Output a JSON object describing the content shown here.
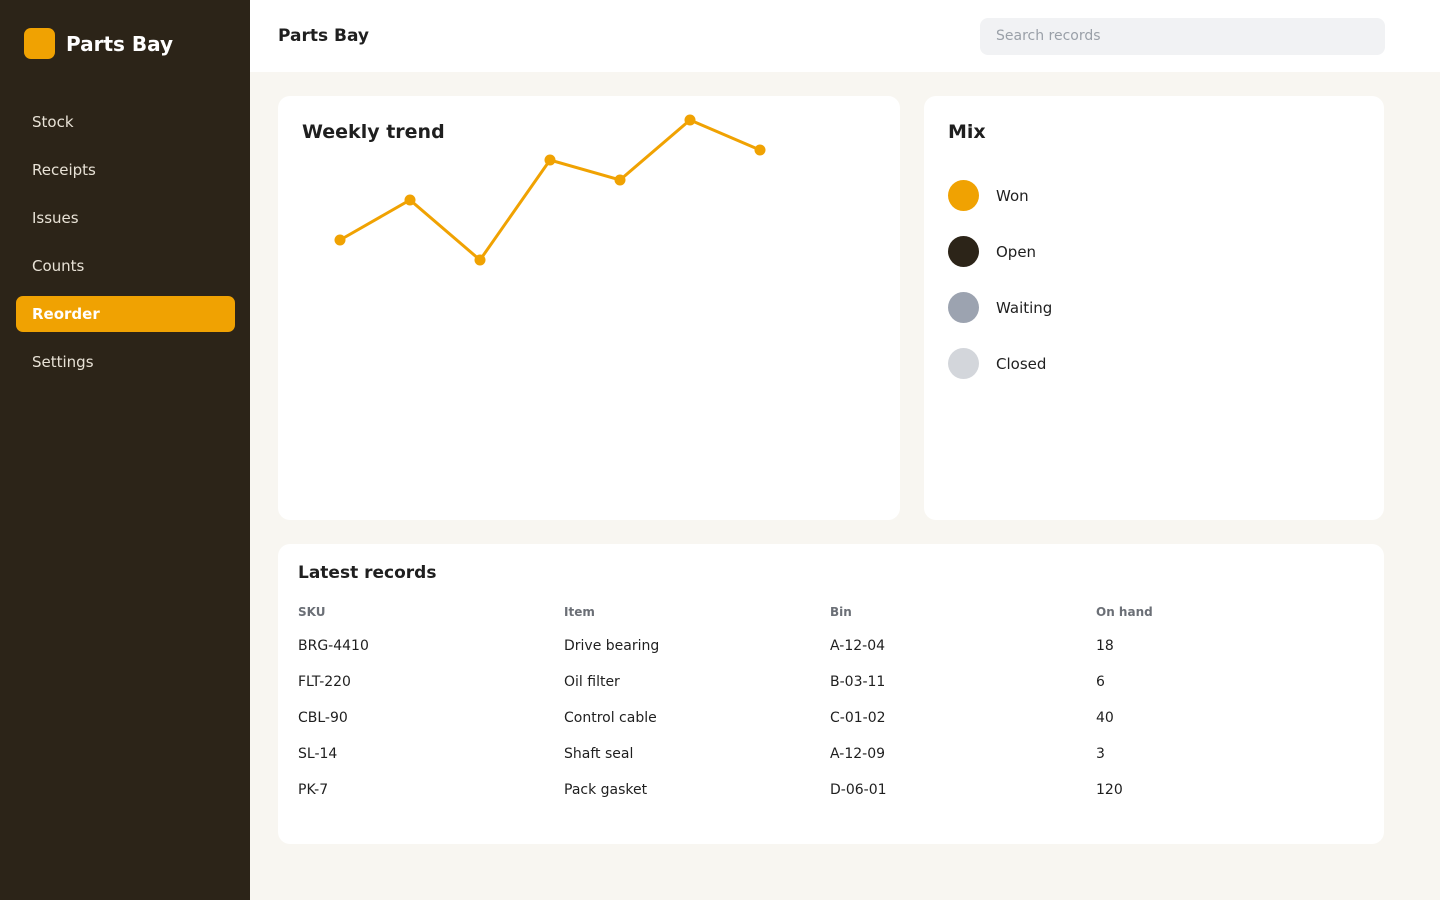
{
  "brand": "Parts Bay",
  "nav": [
    "Stock",
    "Receipts",
    "Issues",
    "Counts",
    "Reorder",
    "Settings"
  ],
  "active_nav": 4,
  "header": {
    "title": "Parts Bay",
    "search_placeholder": "Search records"
  },
  "trend": {
    "type": "line",
    "title": "Weekly trend",
    "values": [
      2,
      4,
      1,
      6,
      5,
      8,
      6.5
    ],
    "color": "#f0a202"
  },
  "mix": {
    "title": "Mix",
    "items": [
      {
        "label": "Won",
        "color": "#f0a202"
      },
      {
        "label": "Open",
        "color": "#2c2418"
      },
      {
        "label": "Waiting",
        "color": "#9ca3b0"
      },
      {
        "label": "Closed",
        "color": "#d3d6db"
      }
    ]
  },
  "table": {
    "title": "Latest records",
    "columns": [
      "SKU",
      "Item",
      "Bin",
      "On hand"
    ],
    "rows": [
      [
        "BRG-4410",
        "Drive bearing",
        "A-12-04",
        18
      ],
      [
        "FLT-220",
        "Oil filter",
        "B-03-11",
        6
      ],
      [
        "CBL-90",
        "Control cable",
        "C-01-02",
        40
      ],
      [
        "SL-14",
        "Shaft seal",
        "A-12-09",
        3
      ],
      [
        "PK-7",
        "Pack gasket",
        "D-06-01",
        120
      ]
    ]
  }
}
